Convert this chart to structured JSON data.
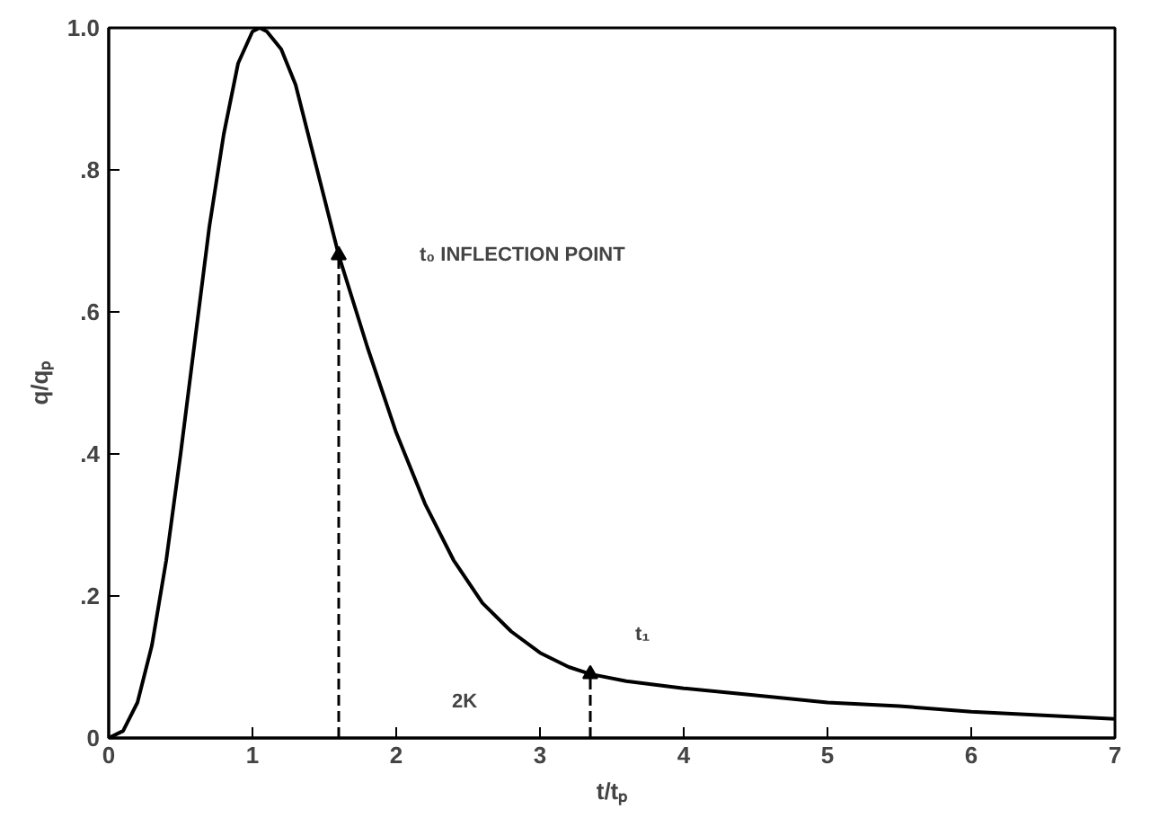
{
  "chart_data": {
    "type": "line",
    "xlabel": "t/tₚ",
    "ylabel": "q/qₚ",
    "x": [
      0,
      0.1,
      0.2,
      0.3,
      0.4,
      0.5,
      0.6,
      0.7,
      0.8,
      0.9,
      1.0,
      1.05,
      1.1,
      1.2,
      1.3,
      1.4,
      1.5,
      1.6,
      1.8,
      2.0,
      2.2,
      2.4,
      2.6,
      2.8,
      3.0,
      3.2,
      3.35,
      3.6,
      4.0,
      4.5,
      5.0,
      5.5,
      6.0,
      6.5,
      7.0
    ],
    "series": [
      {
        "color": "#000000",
        "values": [
          0,
          0.01,
          0.05,
          0.13,
          0.25,
          0.4,
          0.56,
          0.72,
          0.85,
          0.95,
          0.995,
          1.0,
          0.995,
          0.97,
          0.92,
          0.84,
          0.76,
          0.68,
          0.55,
          0.43,
          0.33,
          0.25,
          0.19,
          0.15,
          0.12,
          0.1,
          0.09,
          0.08,
          0.07,
          0.06,
          0.05,
          0.045,
          0.037,
          0.032,
          0.027
        ]
      },
      {
        "type": "lollipop",
        "marker": "triangle",
        "color": "#000000",
        "line_style": "dashed",
        "x": [
          1.6,
          3.35
        ],
        "values": [
          0.68,
          0.09
        ]
      }
    ],
    "xlim": [
      0,
      7
    ],
    "ylim": [
      0,
      1.0
    ],
    "xticks": [
      0,
      1,
      2,
      3,
      4,
      5,
      6,
      7
    ],
    "yticks": [
      0,
      {
        "value": 0.2,
        "label": ".2"
      },
      {
        "value": 0.4,
        "label": ".4"
      },
      {
        "value": 0.6,
        "label": ".6"
      },
      {
        "value": 0.8,
        "label": ".8"
      },
      {
        "value": 1.0,
        "label": "1.0"
      }
    ],
    "grid": false,
    "marker": "none",
    "line_style": "solid",
    "annotations": [
      "t₀ INFLECTION POINT",
      "2K",
      "t₁"
    ]
  }
}
